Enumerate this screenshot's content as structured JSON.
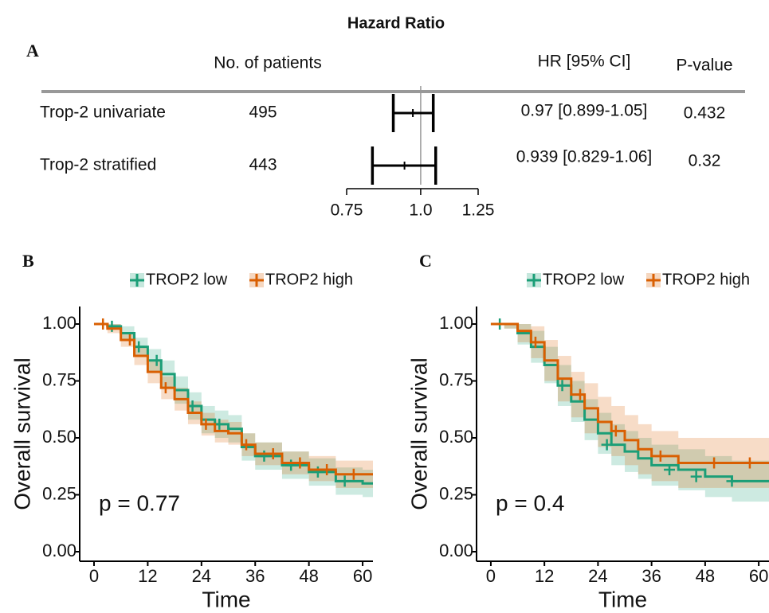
{
  "chart_data": [
    {
      "type": "forest",
      "title": "Hazard Ratio",
      "panel": "A",
      "columns": [
        "No. of patients",
        "HR [95% CI]",
        "P-value"
      ],
      "categories": [
        "Trop-2 univariate",
        "Trop-2 stratified"
      ],
      "n": [
        495,
        443
      ],
      "values": [
        0.97,
        0.939
      ],
      "lower": [
        0.899,
        0.829
      ],
      "upper": [
        1.05,
        1.06
      ],
      "value_labels": [
        "0.97 [0.899-1.05]",
        "0.939 [0.829-1.06]"
      ],
      "p_values": [
        0.432,
        0.32
      ],
      "xscale": "log",
      "xlim": [
        0.75,
        1.25
      ],
      "xticks": [
        0.75,
        {
          "value": 1,
          "label": "1.0"
        },
        1.25
      ]
    },
    {
      "type": "step",
      "panel": "B",
      "xlabel": "Time",
      "ylabel": "Overall survival",
      "annotation": "p = 0.77",
      "x": [
        0,
        3,
        6,
        9,
        12,
        15,
        18,
        21,
        24,
        27,
        30,
        33,
        36,
        42,
        48,
        54,
        60,
        62
      ],
      "series": [
        {
          "name": "TROP2 low",
          "color": "#1b9e77",
          "values": [
            1,
            0.99,
            0.96,
            0.9,
            0.84,
            0.78,
            0.71,
            0.64,
            0.58,
            0.56,
            0.54,
            0.46,
            0.42,
            0.38,
            0.35,
            0.31,
            0.3,
            0.3
          ],
          "lower": [
            1,
            0.98,
            0.93,
            0.86,
            0.79,
            0.72,
            0.65,
            0.58,
            0.52,
            0.5,
            0.48,
            0.4,
            0.36,
            0.32,
            0.29,
            0.25,
            0.24,
            0.24
          ],
          "upper": [
            1,
            1,
            0.99,
            0.94,
            0.89,
            0.84,
            0.77,
            0.7,
            0.64,
            0.62,
            0.6,
            0.52,
            0.48,
            0.44,
            0.41,
            0.37,
            0.36,
            0.36
          ],
          "censor_x": [
            4,
            10,
            14,
            22,
            28,
            38,
            44,
            50,
            56
          ],
          "censor_y": [
            0.99,
            0.9,
            0.84,
            0.64,
            0.56,
            0.42,
            0.38,
            0.35,
            0.31
          ]
        },
        {
          "name": "TROP2 high",
          "color": "#d95f02",
          "values": [
            1,
            0.98,
            0.93,
            0.86,
            0.79,
            0.72,
            0.67,
            0.61,
            0.56,
            0.53,
            0.52,
            0.47,
            0.43,
            0.39,
            0.36,
            0.34,
            0.34,
            0.34
          ],
          "lower": [
            1,
            0.96,
            0.9,
            0.82,
            0.74,
            0.67,
            0.62,
            0.56,
            0.51,
            0.48,
            0.47,
            0.42,
            0.38,
            0.34,
            0.31,
            0.28,
            0.28,
            0.28
          ],
          "upper": [
            1,
            1,
            0.96,
            0.9,
            0.84,
            0.77,
            0.72,
            0.66,
            0.61,
            0.58,
            0.57,
            0.52,
            0.48,
            0.44,
            0.42,
            0.4,
            0.4,
            0.4
          ],
          "censor_x": [
            2,
            8,
            16,
            25,
            34,
            40,
            46,
            52,
            58
          ],
          "censor_y": [
            1,
            0.93,
            0.72,
            0.56,
            0.47,
            0.43,
            0.39,
            0.36,
            0.34
          ]
        }
      ],
      "xlim": [
        -3.2,
        62.3
      ],
      "xticks": [
        0,
        12,
        24,
        36,
        48,
        60
      ],
      "ylim": [
        -0.042,
        1.077
      ],
      "yticks": [
        {
          "value": 0,
          "label": "0.00"
        },
        {
          "value": 0.25,
          "label": "0.25"
        },
        {
          "value": 0.5,
          "label": "0.50"
        },
        {
          "value": 0.75,
          "label": "0.75"
        },
        {
          "value": 1,
          "label": "1.00"
        }
      ],
      "legend": "top"
    },
    {
      "type": "step",
      "panel": "C",
      "xlabel": "Time",
      "ylabel": "Overall survival",
      "annotation": "p = 0.4",
      "x": [
        0,
        3,
        6,
        9,
        12,
        15,
        18,
        21,
        24,
        27,
        30,
        33,
        36,
        42,
        48,
        54,
        60,
        62
      ],
      "series": [
        {
          "name": "TROP2 low",
          "color": "#1b9e77",
          "values": [
            1,
            1,
            0.96,
            0.9,
            0.82,
            0.73,
            0.66,
            0.58,
            0.52,
            0.47,
            0.44,
            0.41,
            0.38,
            0.36,
            0.33,
            0.31,
            0.31,
            0.31
          ],
          "lower": [
            1,
            0.98,
            0.91,
            0.83,
            0.74,
            0.64,
            0.57,
            0.49,
            0.43,
            0.38,
            0.35,
            0.32,
            0.29,
            0.27,
            0.24,
            0.22,
            0.22,
            0.22
          ],
          "upper": [
            1,
            1,
            1,
            0.97,
            0.9,
            0.82,
            0.75,
            0.67,
            0.61,
            0.56,
            0.53,
            0.5,
            0.47,
            0.45,
            0.42,
            0.4,
            0.4,
            0.4
          ],
          "censor_x": [
            2,
            16,
            26,
            40,
            46,
            54
          ],
          "censor_y": [
            1,
            0.73,
            0.47,
            0.36,
            0.33,
            0.31
          ]
        },
        {
          "name": "TROP2 high",
          "color": "#d95f02",
          "values": [
            1,
            1,
            0.97,
            0.92,
            0.84,
            0.76,
            0.69,
            0.63,
            0.57,
            0.53,
            0.49,
            0.45,
            0.42,
            0.39,
            0.39,
            0.39,
            0.39,
            0.39
          ],
          "lower": [
            1,
            0.98,
            0.92,
            0.85,
            0.75,
            0.66,
            0.59,
            0.52,
            0.46,
            0.42,
            0.38,
            0.34,
            0.31,
            0.28,
            0.28,
            0.28,
            0.28,
            0.28
          ],
          "upper": [
            1,
            1,
            1,
            0.99,
            0.93,
            0.86,
            0.79,
            0.74,
            0.68,
            0.64,
            0.6,
            0.56,
            0.53,
            0.5,
            0.5,
            0.5,
            0.5,
            0.5
          ],
          "censor_x": [
            10,
            20,
            28,
            38,
            50,
            58
          ],
          "censor_y": [
            0.92,
            0.69,
            0.53,
            0.42,
            0.39,
            0.39
          ]
        }
      ],
      "xlim": [
        -3.2,
        62.3
      ],
      "xticks": [
        0,
        12,
        24,
        36,
        48,
        60
      ],
      "ylim": [
        -0.042,
        1.077
      ],
      "yticks": [
        {
          "value": 0,
          "label": "0.00"
        },
        {
          "value": 0.25,
          "label": "0.25"
        },
        {
          "value": 0.5,
          "label": "0.50"
        },
        {
          "value": 0.75,
          "label": "0.75"
        },
        {
          "value": 1,
          "label": "1.00"
        }
      ],
      "legend": "top"
    }
  ]
}
